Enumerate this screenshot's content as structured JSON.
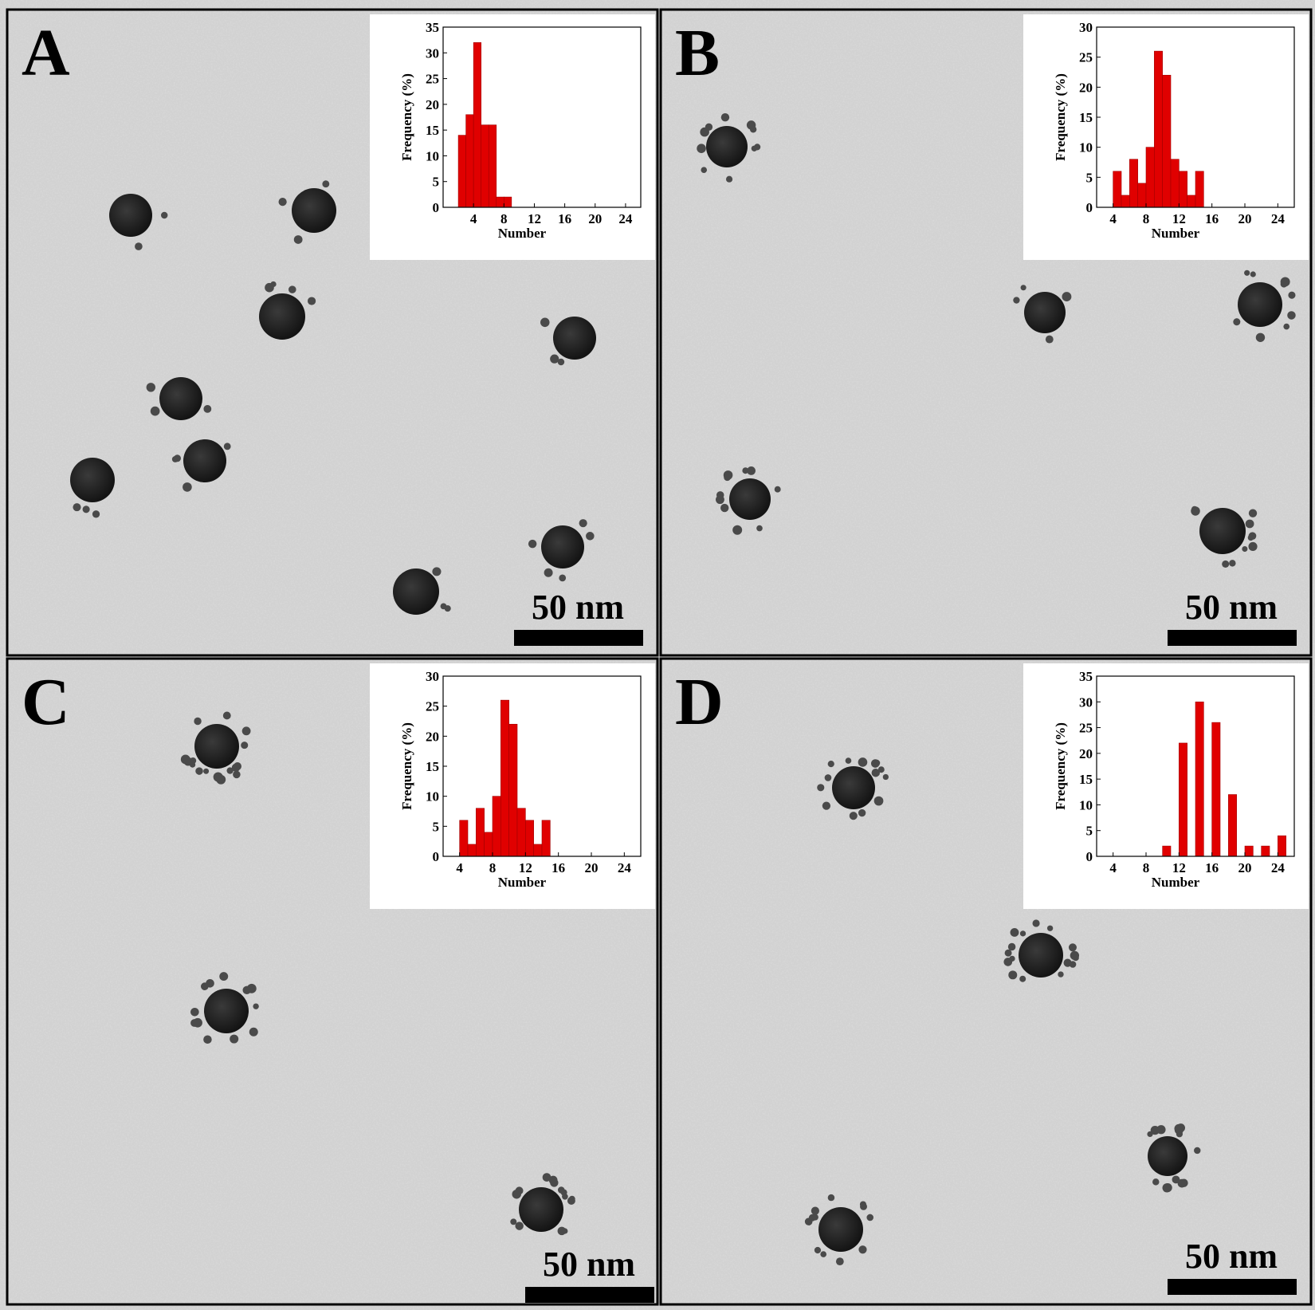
{
  "chart_data": [
    {
      "type": "histogram",
      "xlabel": "Number",
      "ylabel": "Frequency (%)",
      "color": "#e00000",
      "bins": [
        2,
        3,
        4,
        5,
        6,
        7,
        8,
        9
      ],
      "values": [
        14,
        18,
        32,
        16,
        16,
        2,
        2
      ],
      "xlim": [
        0,
        26
      ],
      "ylim": [
        0,
        35
      ],
      "xticks": [
        4,
        8,
        12,
        16,
        20,
        24
      ],
      "yticks": [
        0,
        5,
        10,
        15,
        20,
        25,
        30,
        35
      ]
    },
    {
      "type": "histogram",
      "xlabel": "Number",
      "ylabel": "Frequency (%)",
      "color": "#e00000",
      "bins": [
        4,
        5,
        6,
        7,
        8,
        9,
        10,
        11,
        12,
        13,
        14,
        15
      ],
      "values": [
        6,
        2,
        8,
        4,
        10,
        26,
        22,
        8,
        6,
        2,
        6
      ],
      "xlim": [
        2,
        26
      ],
      "ylim": [
        0,
        30
      ],
      "xticks": [
        4,
        8,
        12,
        16,
        20,
        24
      ],
      "yticks": [
        0,
        5,
        10,
        15,
        20,
        25,
        30
      ]
    },
    {
      "type": "histogram",
      "xlabel": "Number",
      "ylabel": "Frequency (%)",
      "color": "#e00000",
      "bins": [
        4,
        5,
        6,
        7,
        8,
        9,
        10,
        11,
        12,
        13,
        14,
        15
      ],
      "values": [
        6,
        2,
        8,
        4,
        10,
        26,
        22,
        8,
        6,
        2,
        6
      ],
      "xlim": [
        2,
        26
      ],
      "ylim": [
        0,
        30
      ],
      "xticks": [
        4,
        8,
        12,
        16,
        20,
        24
      ],
      "yticks": [
        0,
        5,
        10,
        15,
        20,
        25,
        30
      ]
    },
    {
      "type": "histogram",
      "xlabel": "Number",
      "ylabel": "Frequency (%)",
      "color": "#e00000",
      "bins": [
        10,
        11,
        12,
        13,
        14,
        15,
        16,
        17,
        18,
        19,
        20,
        21,
        22,
        23,
        24,
        25
      ],
      "values": [
        2,
        0,
        22,
        0,
        30,
        0,
        26,
        0,
        12,
        0,
        2,
        0,
        2,
        0,
        4
      ],
      "xlim": [
        2,
        26
      ],
      "ylim": [
        0,
        35
      ],
      "xticks": [
        4,
        8,
        12,
        16,
        20,
        24
      ],
      "yticks": [
        0,
        5,
        10,
        15,
        20,
        25,
        30,
        35
      ]
    }
  ],
  "panels": [
    {
      "label": "A",
      "scale_bar": "50 nm"
    },
    {
      "label": "B",
      "scale_bar": "50 nm"
    },
    {
      "label": "C",
      "scale_bar": "50 nm"
    },
    {
      "label": "D",
      "scale_bar": "50 nm"
    }
  ]
}
